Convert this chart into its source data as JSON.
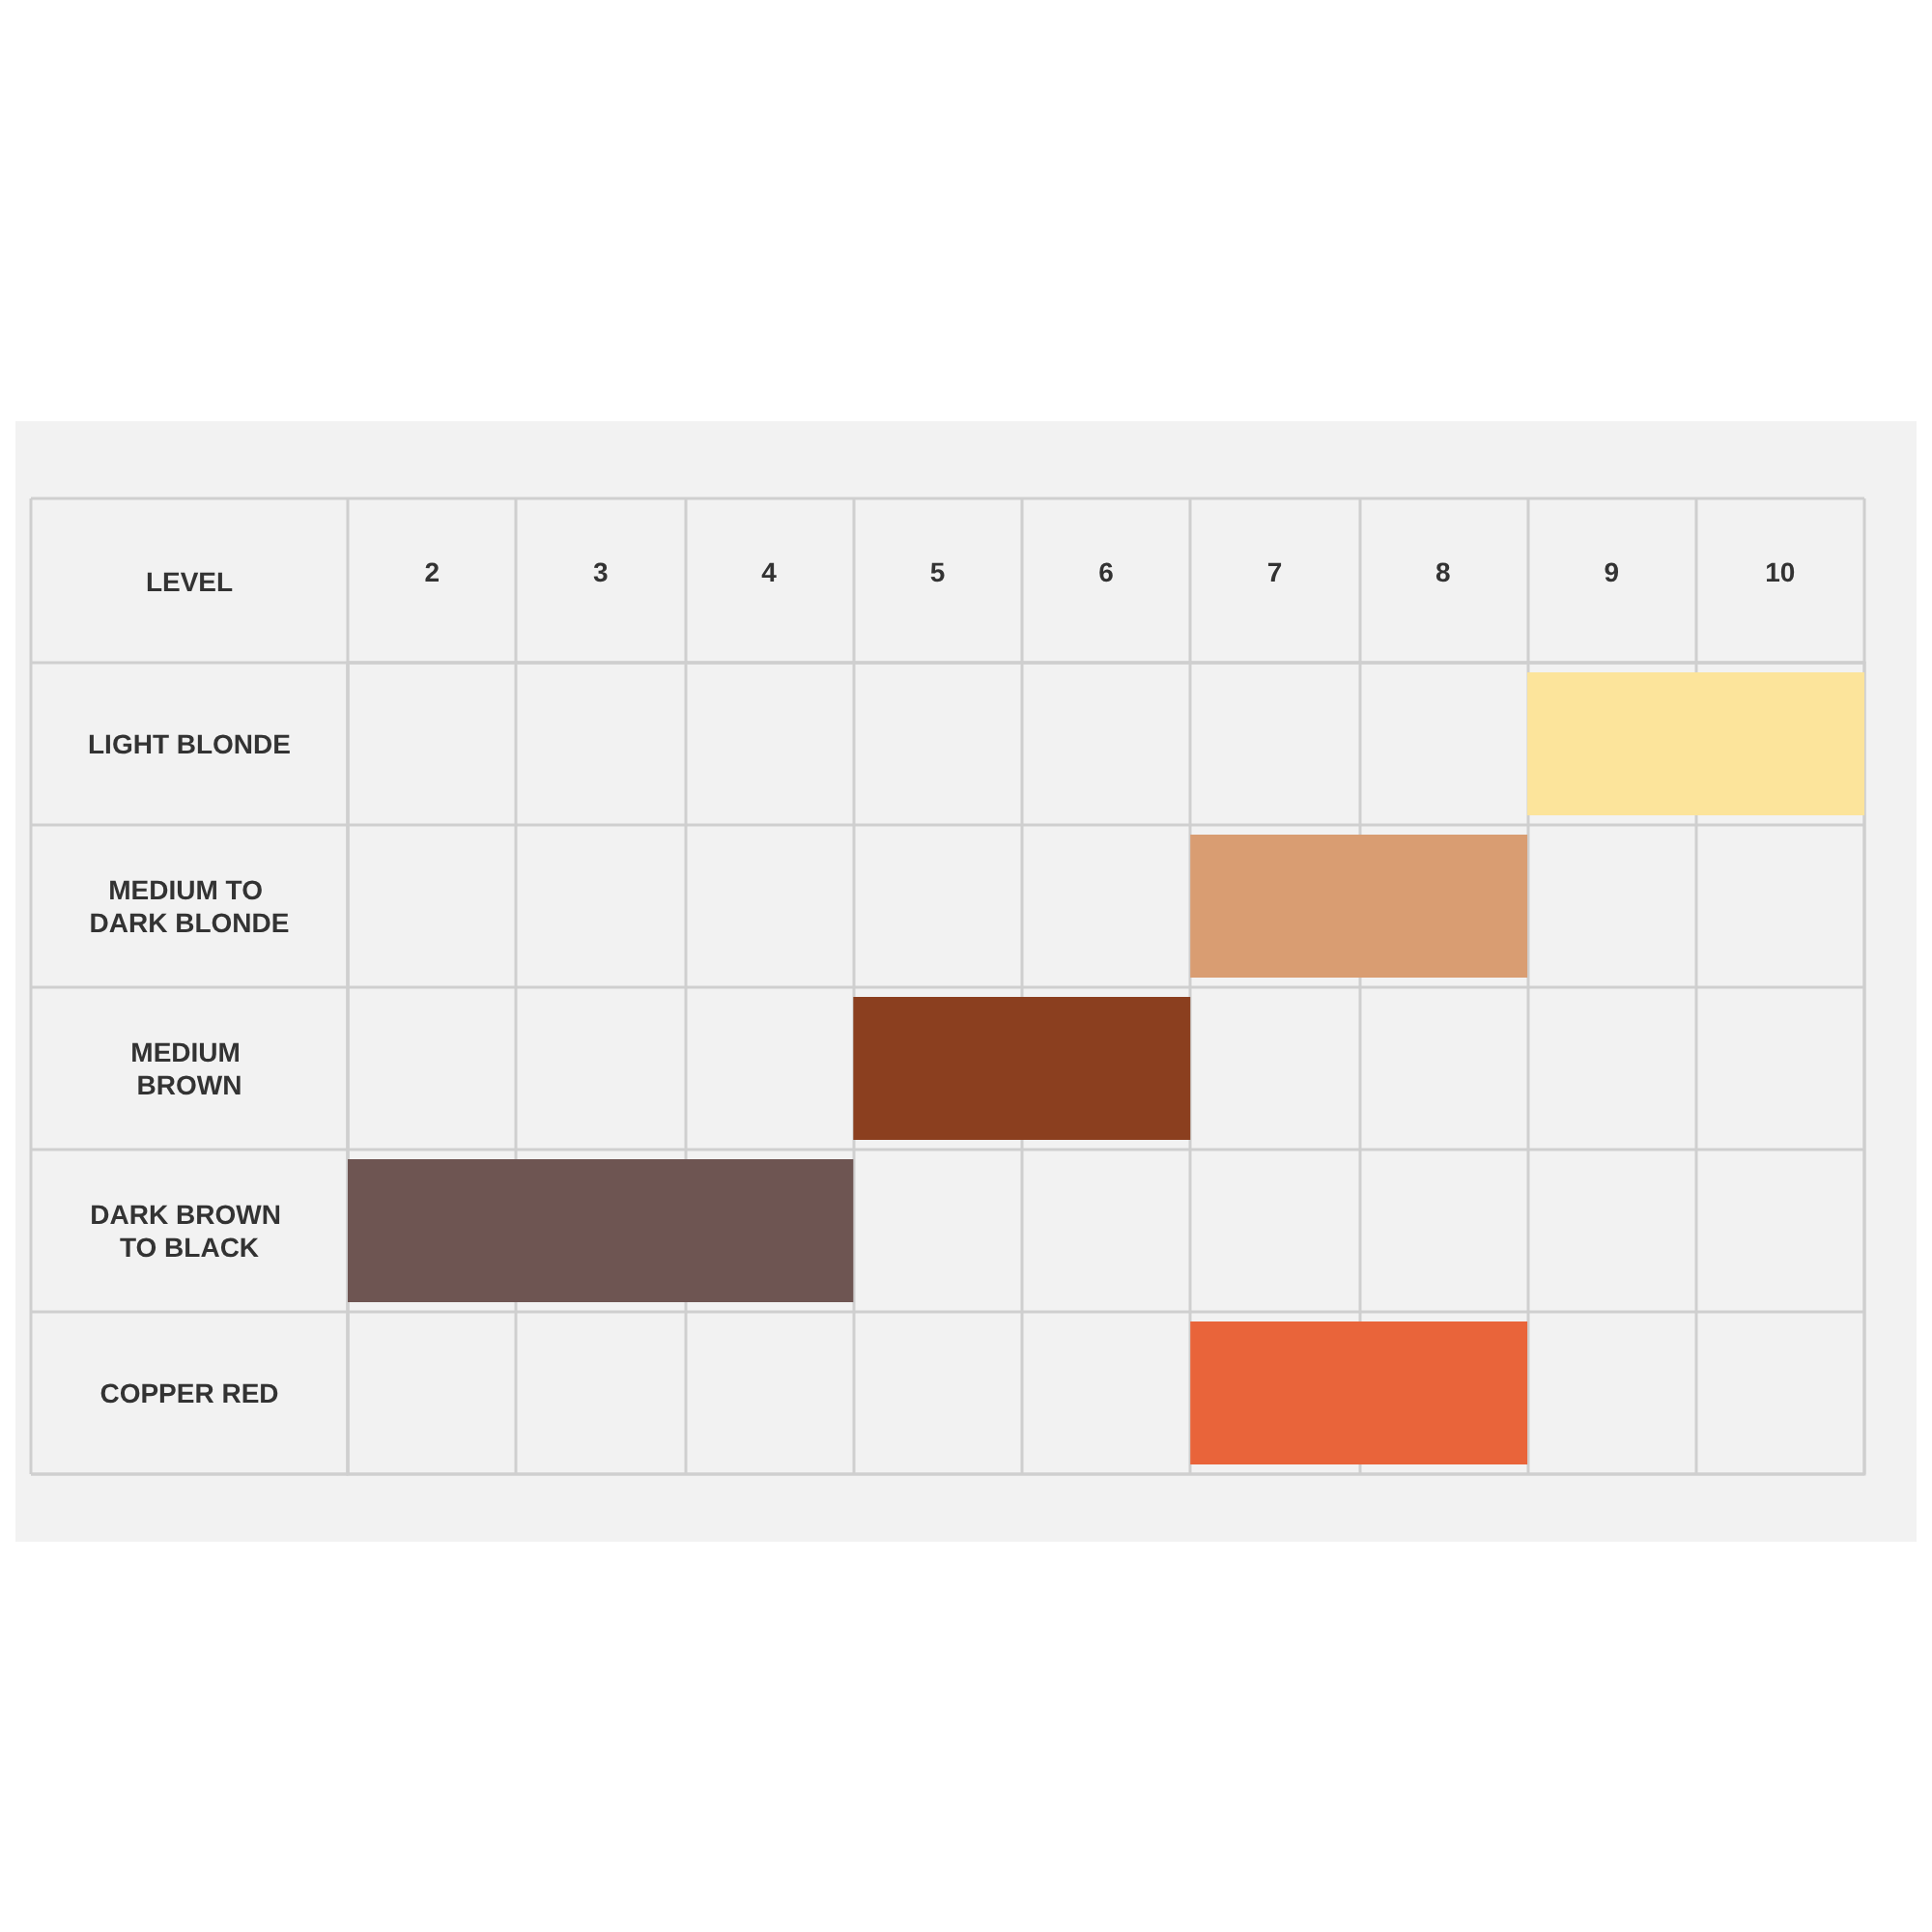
{
  "chart_data": {
    "type": "bar",
    "orientation": "horizontal",
    "xlabel": "LEVEL",
    "categories": [
      "LIGHT BLONDE",
      "MEDIUM TO DARK BLONDE",
      "MEDIUM BROWN",
      "DARK BROWN TO BLACK",
      "COPPER RED"
    ],
    "base": [
      8.5,
      6.5,
      4.5,
      1.5,
      6.5
    ],
    "values": [
      2,
      2,
      2,
      3,
      2
    ],
    "colors": [
      "#fce49b",
      "#d99d72",
      "#8b3f1f",
      "#6e5552",
      "#e9643a"
    ],
    "xlim": [
      1.5,
      10.5
    ],
    "xticks": [
      {
        "value": 1.5,
        "label": null
      },
      2,
      {
        "value": 2.5,
        "label": null
      },
      3,
      {
        "value": 3.5,
        "label": null
      },
      4,
      {
        "value": 4.5,
        "label": null
      },
      5,
      {
        "value": 5.5,
        "label": null
      },
      6,
      {
        "value": 6.5,
        "label": null
      },
      7,
      {
        "value": 7.5,
        "label": null
      },
      8,
      {
        "value": 8.5,
        "label": null
      },
      9,
      {
        "value": 9.5,
        "label": null
      },
      10,
      {
        "value": 10.5,
        "label": null
      }
    ],
    "grid": true
  }
}
